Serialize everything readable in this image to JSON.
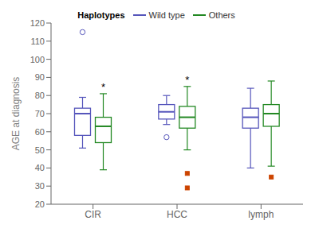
{
  "chart_data": {
    "type": "box",
    "title": "",
    "ylabel": "AGE at diagnosis",
    "categories": [
      "CIR",
      "HCC",
      "lymph"
    ],
    "ylim": [
      20,
      120
    ],
    "yticks": [
      20,
      30,
      40,
      50,
      60,
      70,
      80,
      90,
      100,
      110,
      120
    ],
    "grid": false,
    "legend": "top",
    "legend_title": "Haplotypes",
    "series": [
      {
        "name": "Wild type",
        "color": "#5555bb",
        "q1": [
          58,
          67,
          62
        ],
        "median": [
          70,
          71,
          68
        ],
        "q3": [
          73,
          75,
          73
        ],
        "whislo": [
          51,
          64,
          40
        ],
        "whishi": [
          79,
          80,
          84
        ],
        "outliers": [
          {
            "category": "CIR",
            "value": 115,
            "marker": "circle"
          },
          {
            "category": "HCC",
            "value": 57,
            "marker": "circle"
          }
        ]
      },
      {
        "name": "Others",
        "color": "#228822",
        "q1": [
          54,
          62,
          63
        ],
        "median": [
          63,
          68,
          70
        ],
        "q3": [
          68,
          74,
          75
        ],
        "whislo": [
          39,
          50,
          41
        ],
        "whishi": [
          81,
          85,
          88
        ],
        "outliers": [
          {
            "category": "HCC",
            "value": 29,
            "marker": "square",
            "color": "#cc4400"
          },
          {
            "category": "HCC",
            "value": 37,
            "marker": "square",
            "color": "#cc4400"
          },
          {
            "category": "lymph",
            "value": 35,
            "marker": "square",
            "color": "#cc4400"
          }
        ]
      }
    ],
    "annotations": [
      {
        "category": "CIR",
        "series": "Others",
        "text": "*"
      },
      {
        "category": "HCC",
        "series": "Others",
        "text": "*"
      }
    ]
  }
}
